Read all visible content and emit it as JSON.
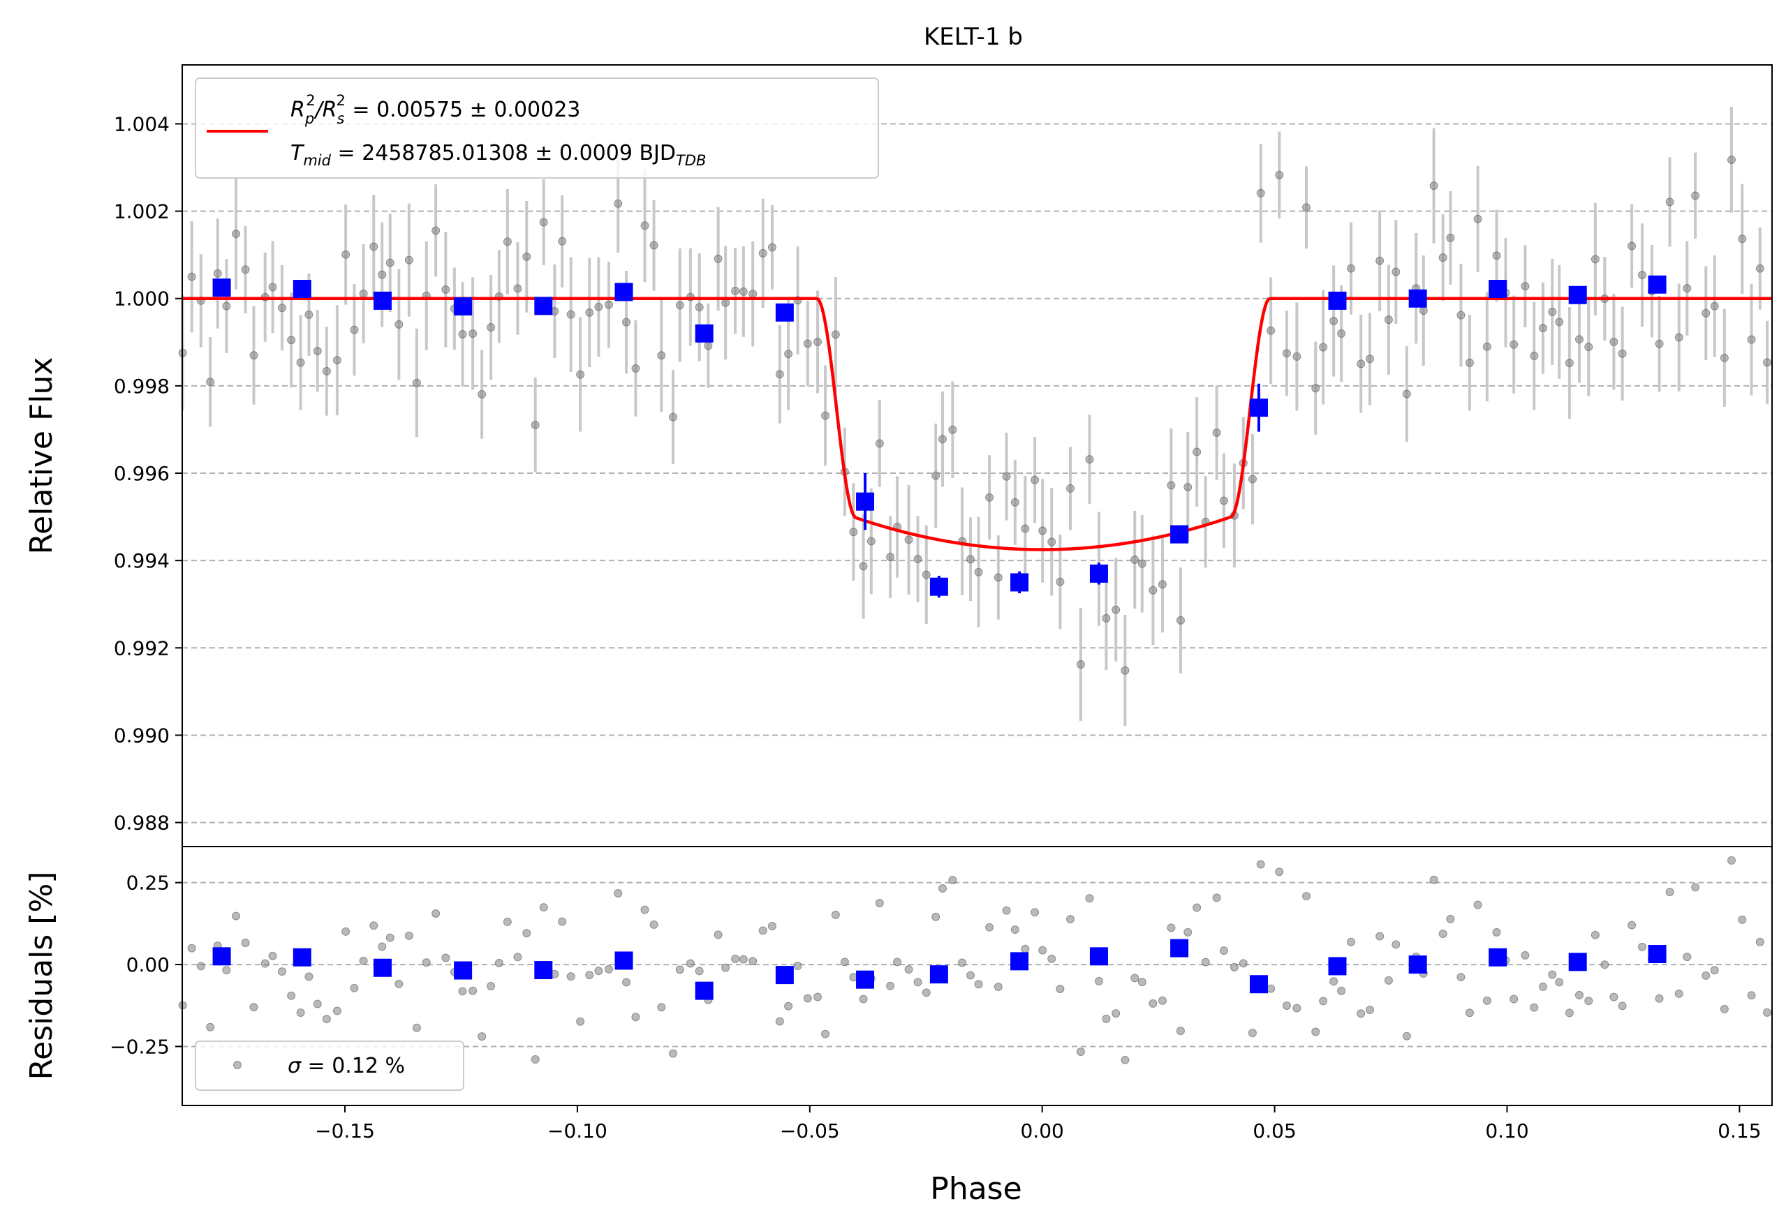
{
  "colors": {
    "model": "#ff0000",
    "binned": "#0000ff",
    "raw_point": "#808080",
    "raw_errorbar": "#c8c8c8",
    "grid": "#b0b0b0",
    "axes": "#000000"
  },
  "chart_data": [
    {
      "panel": "lightcurve",
      "type": "scatter",
      "title": "KELT-1 b",
      "ylabel": "Relative Flux",
      "xlim": [
        -0.185,
        0.157
      ],
      "ylim": [
        0.98745,
        1.00535
      ],
      "y_ticks": [
        0.988,
        0.99,
        0.992,
        0.994,
        0.996,
        0.998,
        1.0,
        1.002,
        1.004
      ],
      "y_tick_labels": [
        "0.988",
        "0.990",
        "0.992",
        "0.994",
        "0.996",
        "0.998",
        "1.000",
        "1.002",
        "1.004"
      ],
      "grid": "horizontal dashed",
      "legend": {
        "placement": "top-left",
        "line1": {
          "base": "R",
          "sub1": "p",
          "sup1": "2",
          "mid": "/R",
          "sub2": "s",
          "sup2": "2",
          "rest": " = 0.00575 ± 0.00023"
        },
        "line2": {
          "base": "T",
          "sub": "mid",
          "rest": " = 2458785.01308 ± 0.0009 BJD",
          "sub_end": "TDB"
        }
      },
      "model": {
        "name": "transit model",
        "depth": 0.00575,
        "baseline": 1.0,
        "t_contact_1": -0.0485,
        "t_contact_2": -0.04,
        "t_contact_3": 0.0405,
        "t_contact_4": 0.049,
        "curvature": 0.00092
      },
      "binned": {
        "x": [
          -0.1765,
          -0.1592,
          -0.1419,
          -0.1246,
          -0.1073,
          -0.09,
          -0.0727,
          -0.0554,
          -0.0381,
          -0.0222,
          -0.0049,
          0.0122,
          0.0295,
          0.0466,
          0.0635,
          0.0808,
          0.098,
          0.1152,
          0.1323
        ],
        "y": [
          1.00025,
          1.00022,
          0.99995,
          0.99982,
          0.99983,
          1.00015,
          0.9992,
          0.99968,
          0.99535,
          0.9934,
          0.9935,
          0.9937,
          0.9946,
          0.9975,
          0.99995,
          1.0,
          1.00022,
          1.00008,
          1.00032
        ],
        "yerr": [
          0.0002,
          0.0002,
          0.0002,
          0.0002,
          0.0002,
          0.0002,
          0.0002,
          0.0002,
          0.00065,
          0.00025,
          0.00025,
          0.00025,
          0.0002,
          0.00055,
          0.0002,
          0.0002,
          0.0002,
          0.0002,
          0.0002
        ]
      },
      "raw": {
        "x_start": -0.185,
        "x_step": 0.00195,
        "count": 176,
        "scatter_pct": 0.12,
        "yerr": 0.0011
      }
    },
    {
      "panel": "residuals",
      "type": "scatter",
      "xlabel": "Phase",
      "ylabel": "Residuals [%]",
      "xlim": [
        -0.185,
        0.157
      ],
      "ylim": [
        -0.43,
        0.36
      ],
      "y_ticks": [
        -0.25,
        0.0,
        0.25
      ],
      "y_tick_labels": [
        "−0.25",
        "0.00",
        "0.25"
      ],
      "x_ticks": [
        -0.15,
        -0.1,
        -0.05,
        0.0,
        0.05,
        0.1,
        0.15
      ],
      "x_tick_labels": [
        "−0.15",
        "−0.10",
        "−0.05",
        "0.00",
        "0.05",
        "0.10",
        "0.15"
      ],
      "grid": "horizontal dashed",
      "legend": {
        "placement": "bottom-left",
        "symbol": "σ",
        "rest": " = 0.12 %"
      },
      "binned": {
        "x": [
          -0.1765,
          -0.1592,
          -0.1419,
          -0.1246,
          -0.1073,
          -0.09,
          -0.0727,
          -0.0554,
          -0.0381,
          -0.0222,
          -0.0049,
          0.0122,
          0.0295,
          0.0466,
          0.0635,
          0.0808,
          0.098,
          0.1152,
          0.1323
        ],
        "y": [
          0.025,
          0.022,
          -0.01,
          -0.018,
          -0.017,
          0.012,
          -0.08,
          -0.032,
          -0.046,
          -0.03,
          0.01,
          0.025,
          0.05,
          -0.06,
          -0.005,
          0.0,
          0.022,
          0.008,
          0.032
        ]
      }
    }
  ]
}
